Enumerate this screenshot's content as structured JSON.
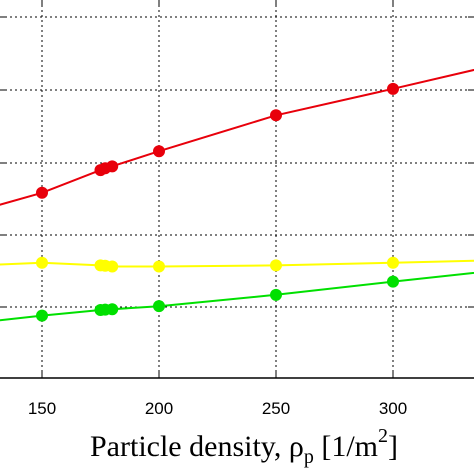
{
  "chart_data": {
    "type": "line",
    "title": "",
    "xlabel": {
      "text": "Particle density, ",
      "symbol": "ρ",
      "subscript": "p",
      "unit_prefix": " [1/m",
      "superscript": "2",
      "unit_suffix": "]"
    },
    "ylabel": "",
    "xlim": [
      115,
      345
    ],
    "ylim": [
      0,
      1
    ],
    "grid": true,
    "x_ticks": [
      150,
      200,
      250,
      300
    ],
    "x_tick_labels": [
      "150",
      "200",
      "250",
      "300"
    ],
    "series": [
      {
        "color": "#e8000b",
        "x": [
          113,
          150,
          175,
          177,
          180,
          200,
          250,
          300,
          345
        ],
        "y": [
          0.425,
          0.49,
          0.55,
          0.555,
          0.56,
          0.6,
          0.695,
          0.765,
          0.83
        ],
        "markers": [
          150,
          175,
          177,
          180,
          200,
          250,
          300
        ]
      },
      {
        "color": "#ffff00",
        "x": [
          113,
          150,
          175,
          177,
          180,
          200,
          250,
          300,
          345
        ],
        "y": [
          0.295,
          0.305,
          0.298,
          0.297,
          0.295,
          0.295,
          0.298,
          0.305,
          0.312
        ],
        "markers": [
          150,
          175,
          177,
          180,
          200,
          250,
          300
        ]
      },
      {
        "color": "#00e000",
        "x": [
          113,
          150,
          175,
          177,
          180,
          200,
          250,
          300,
          345
        ],
        "y": [
          0.14,
          0.165,
          0.18,
          0.181,
          0.182,
          0.19,
          0.22,
          0.255,
          0.285
        ],
        "markers": [
          150,
          175,
          177,
          180,
          200,
          250,
          300
        ]
      }
    ]
  }
}
